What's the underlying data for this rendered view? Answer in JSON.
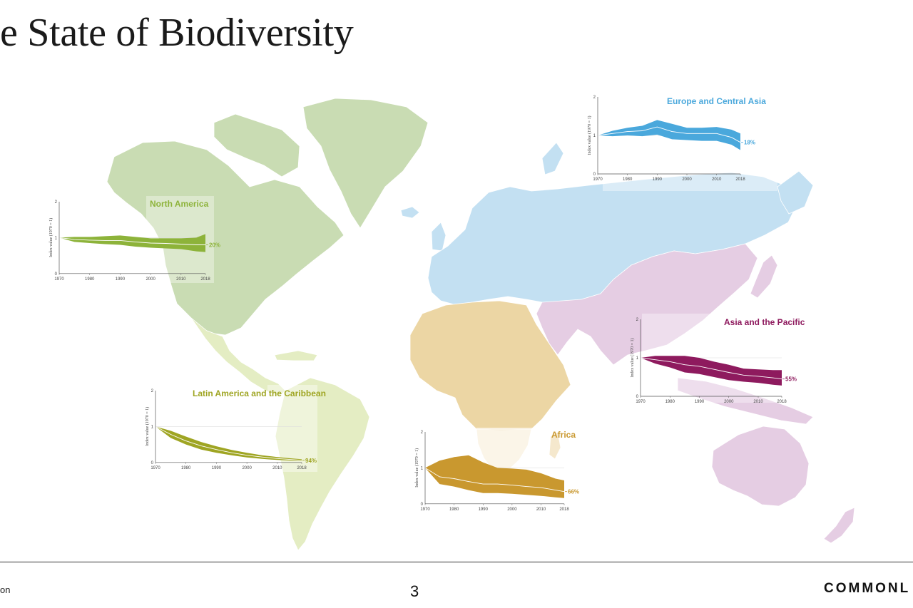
{
  "slide": {
    "title": "e State of Biodiversity",
    "footer_left": "on",
    "page_number": "3",
    "brand": "COMMONL"
  },
  "map": {
    "regions": [
      {
        "name": "North America",
        "color": "#c9dcb3"
      },
      {
        "name": "Latin America and the Caribbean",
        "color": "#e4edc3"
      },
      {
        "name": "Europe and Central Asia",
        "color": "#c3e0f2"
      },
      {
        "name": "Africa",
        "color": "#ecd6a4"
      },
      {
        "name": "Asia and the Pacific",
        "color": "#e5cde3"
      }
    ]
  },
  "chart_data": [
    {
      "type": "area",
      "title": "North America",
      "ylabel": "Index value (1970 = 1)",
      "x_ticks": [
        "1970",
        "1980",
        "1990",
        "2000",
        "2010",
        "2018"
      ],
      "y_ticks": [
        "0",
        "1",
        "2"
      ],
      "ylim": [
        0,
        2
      ],
      "x": [
        1970,
        1975,
        1980,
        1985,
        1990,
        1995,
        2000,
        2005,
        2010,
        2015,
        2018
      ],
      "values": [
        1.0,
        0.95,
        0.93,
        0.92,
        0.92,
        0.88,
        0.85,
        0.84,
        0.82,
        0.8,
        0.8
      ],
      "upper": [
        1.0,
        1.02,
        1.02,
        1.04,
        1.06,
        1.02,
        0.98,
        0.98,
        0.98,
        1.0,
        1.1
      ],
      "lower": [
        1.0,
        0.88,
        0.85,
        0.82,
        0.8,
        0.75,
        0.72,
        0.7,
        0.68,
        0.62,
        0.6
      ],
      "change_label": "20%",
      "color": "#8db33a"
    },
    {
      "type": "area",
      "title": "Latin America and the Caribbean",
      "ylabel": "Index value (1970 = 1)",
      "x_ticks": [
        "1970",
        "1980",
        "1990",
        "2000",
        "2010",
        "2018"
      ],
      "y_ticks": [
        "0",
        "1",
        "2"
      ],
      "ylim": [
        0,
        2
      ],
      "x": [
        1970,
        1975,
        1980,
        1985,
        1990,
        1995,
        2000,
        2005,
        2010,
        2015,
        2018
      ],
      "values": [
        1.0,
        0.78,
        0.6,
        0.46,
        0.36,
        0.27,
        0.2,
        0.15,
        0.11,
        0.08,
        0.06
      ],
      "upper": [
        1.0,
        0.88,
        0.72,
        0.57,
        0.45,
        0.35,
        0.27,
        0.2,
        0.15,
        0.11,
        0.09
      ],
      "lower": [
        1.0,
        0.68,
        0.5,
        0.36,
        0.27,
        0.2,
        0.14,
        0.1,
        0.07,
        0.05,
        0.04
      ],
      "change_label": "94%",
      "color": "#9fa523"
    },
    {
      "type": "area",
      "title": "Europe and Central Asia",
      "ylabel": "Index value (1970 = 1)",
      "x_ticks": [
        "1970",
        "1980",
        "1990",
        "2000",
        "2010",
        "2018"
      ],
      "y_ticks": [
        "0",
        "1",
        "2"
      ],
      "ylim": [
        0,
        2
      ],
      "x": [
        1970,
        1975,
        1980,
        1985,
        1990,
        1995,
        2000,
        2005,
        2010,
        2015,
        2018
      ],
      "values": [
        1.0,
        1.05,
        1.1,
        1.12,
        1.22,
        1.1,
        1.05,
        1.05,
        1.05,
        0.95,
        0.82
      ],
      "upper": [
        1.0,
        1.12,
        1.2,
        1.25,
        1.4,
        1.3,
        1.2,
        1.2,
        1.22,
        1.15,
        1.05
      ],
      "lower": [
        1.0,
        0.98,
        1.0,
        0.98,
        1.02,
        0.9,
        0.88,
        0.86,
        0.86,
        0.76,
        0.62
      ],
      "change_label": "18%",
      "color": "#4aa8dc"
    },
    {
      "type": "area",
      "title": "Africa",
      "ylabel": "Index value (1970 = 1)",
      "x_ticks": [
        "1970",
        "1980",
        "1990",
        "2000",
        "2010",
        "2018"
      ],
      "y_ticks": [
        "0",
        "1",
        "2"
      ],
      "ylim": [
        0,
        2
      ],
      "x": [
        1970,
        1975,
        1980,
        1985,
        1990,
        1995,
        2000,
        2005,
        2010,
        2015,
        2018
      ],
      "values": [
        1.0,
        0.75,
        0.7,
        0.62,
        0.55,
        0.55,
        0.52,
        0.48,
        0.45,
        0.38,
        0.34
      ],
      "upper": [
        1.0,
        1.2,
        1.3,
        1.35,
        1.15,
        1.0,
        0.98,
        0.95,
        0.85,
        0.7,
        0.65
      ],
      "lower": [
        1.0,
        0.55,
        0.48,
        0.38,
        0.3,
        0.3,
        0.28,
        0.25,
        0.22,
        0.18,
        0.16
      ],
      "change_label": "66%",
      "color": "#c9982f"
    },
    {
      "type": "area",
      "title": "Asia and the Pacific",
      "ylabel": "Index value (1970 = 1)",
      "x_ticks": [
        "1970",
        "1980",
        "1990",
        "2000",
        "2010",
        "2018"
      ],
      "y_ticks": [
        "0",
        "1",
        "2"
      ],
      "ylim": [
        0,
        2
      ],
      "x": [
        1970,
        1975,
        1980,
        1985,
        1990,
        1995,
        2000,
        2005,
        2010,
        2015,
        2018
      ],
      "values": [
        1.0,
        0.95,
        0.9,
        0.82,
        0.78,
        0.7,
        0.62,
        0.55,
        0.52,
        0.48,
        0.45
      ],
      "upper": [
        1.0,
        1.05,
        1.05,
        1.05,
        1.0,
        0.9,
        0.82,
        0.72,
        0.7,
        0.68,
        0.68
      ],
      "lower": [
        1.0,
        0.85,
        0.75,
        0.62,
        0.58,
        0.5,
        0.42,
        0.38,
        0.35,
        0.3,
        0.28
      ],
      "change_label": "55%",
      "color": "#8e1a5e"
    }
  ]
}
